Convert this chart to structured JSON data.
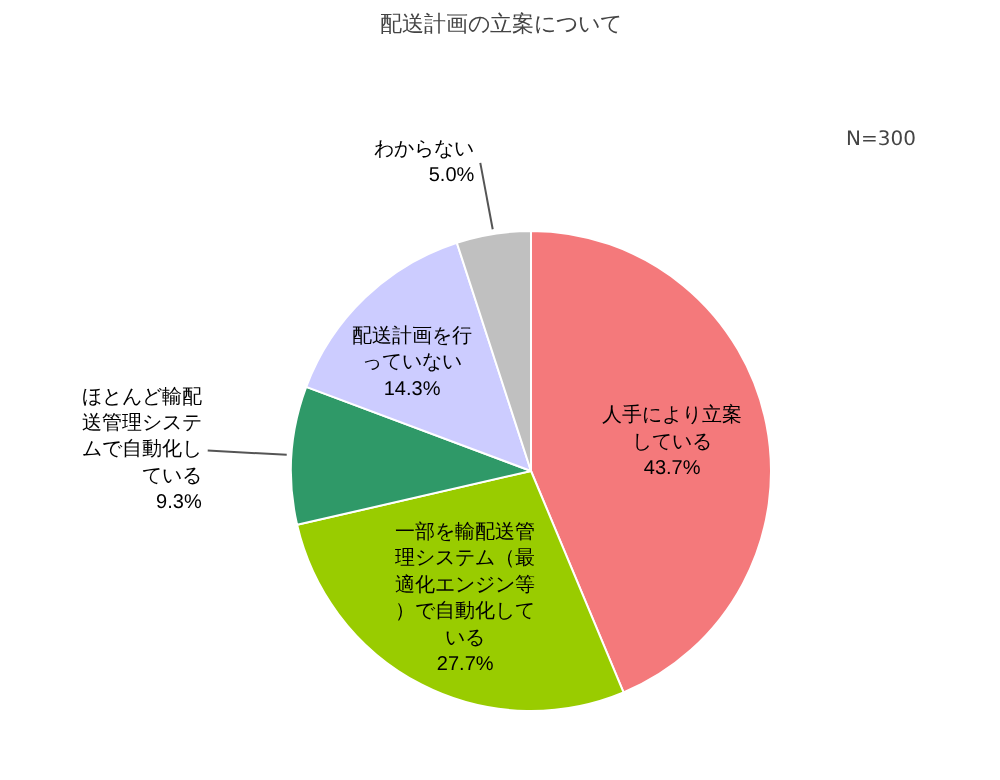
{
  "chart_data": {
    "type": "pie",
    "title": "配送計画の立案について",
    "annotations": [
      "N=300"
    ],
    "categories": [
      "人手により立案している",
      "一部を輸配送管理システム（最適化エンジン等）で自動化している",
      "ほとんど輸配送管理システムで自動化している",
      "配送計画を行っていない",
      "わからない"
    ],
    "values": [
      43.7,
      27.7,
      9.3,
      14.3,
      5.0
    ],
    "value_labels": [
      "43.7%",
      "27.7%",
      "9.3%",
      "14.3%",
      "5.0%"
    ],
    "colors": [
      "#f4797b",
      "#99cc00",
      "#2f9968",
      "#ccccff",
      "#c0c0c0"
    ]
  }
}
